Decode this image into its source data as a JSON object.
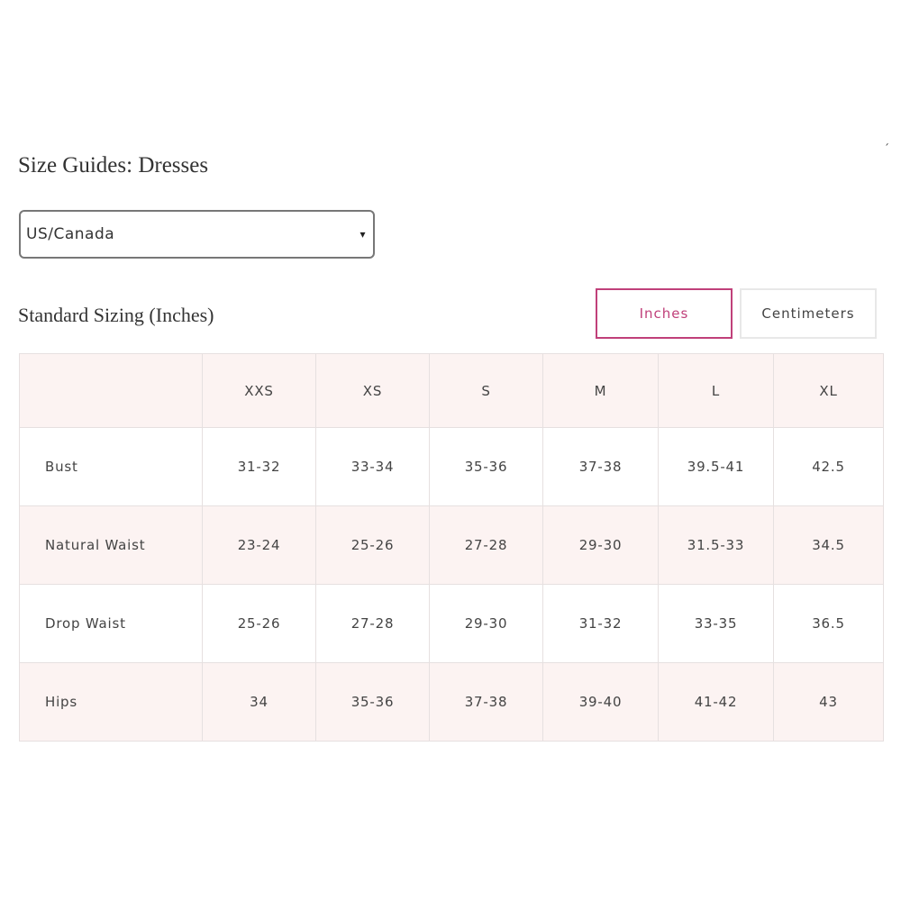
{
  "page_title": "Size Guides: Dresses",
  "corner_mark": "´",
  "region_select": {
    "value": "US/Canada",
    "arrow": "▾"
  },
  "section_title": "Standard Sizing (Inches)",
  "unit_toggle": {
    "inches": "Inches",
    "centimeters": "Centimeters",
    "selected": "Inches",
    "accent_color": "#c0407a"
  },
  "table": {
    "headers": [
      "",
      "XXS",
      "XS",
      "S",
      "M",
      "L",
      "XL"
    ],
    "rows": [
      {
        "label": "Bust",
        "values": [
          "31-32",
          "33-34",
          "35-36",
          "37-38",
          "39.5-41",
          "42.5"
        ]
      },
      {
        "label": "Natural Waist",
        "values": [
          "23-24",
          "25-26",
          "27-28",
          "29-30",
          "31.5-33",
          "34.5"
        ]
      },
      {
        "label": "Drop Waist",
        "values": [
          "25-26",
          "27-28",
          "29-30",
          "31-32",
          "33-35",
          "36.5"
        ]
      },
      {
        "label": "Hips",
        "values": [
          "34",
          "35-36",
          "37-38",
          "39-40",
          "41-42",
          "43"
        ]
      }
    ]
  }
}
